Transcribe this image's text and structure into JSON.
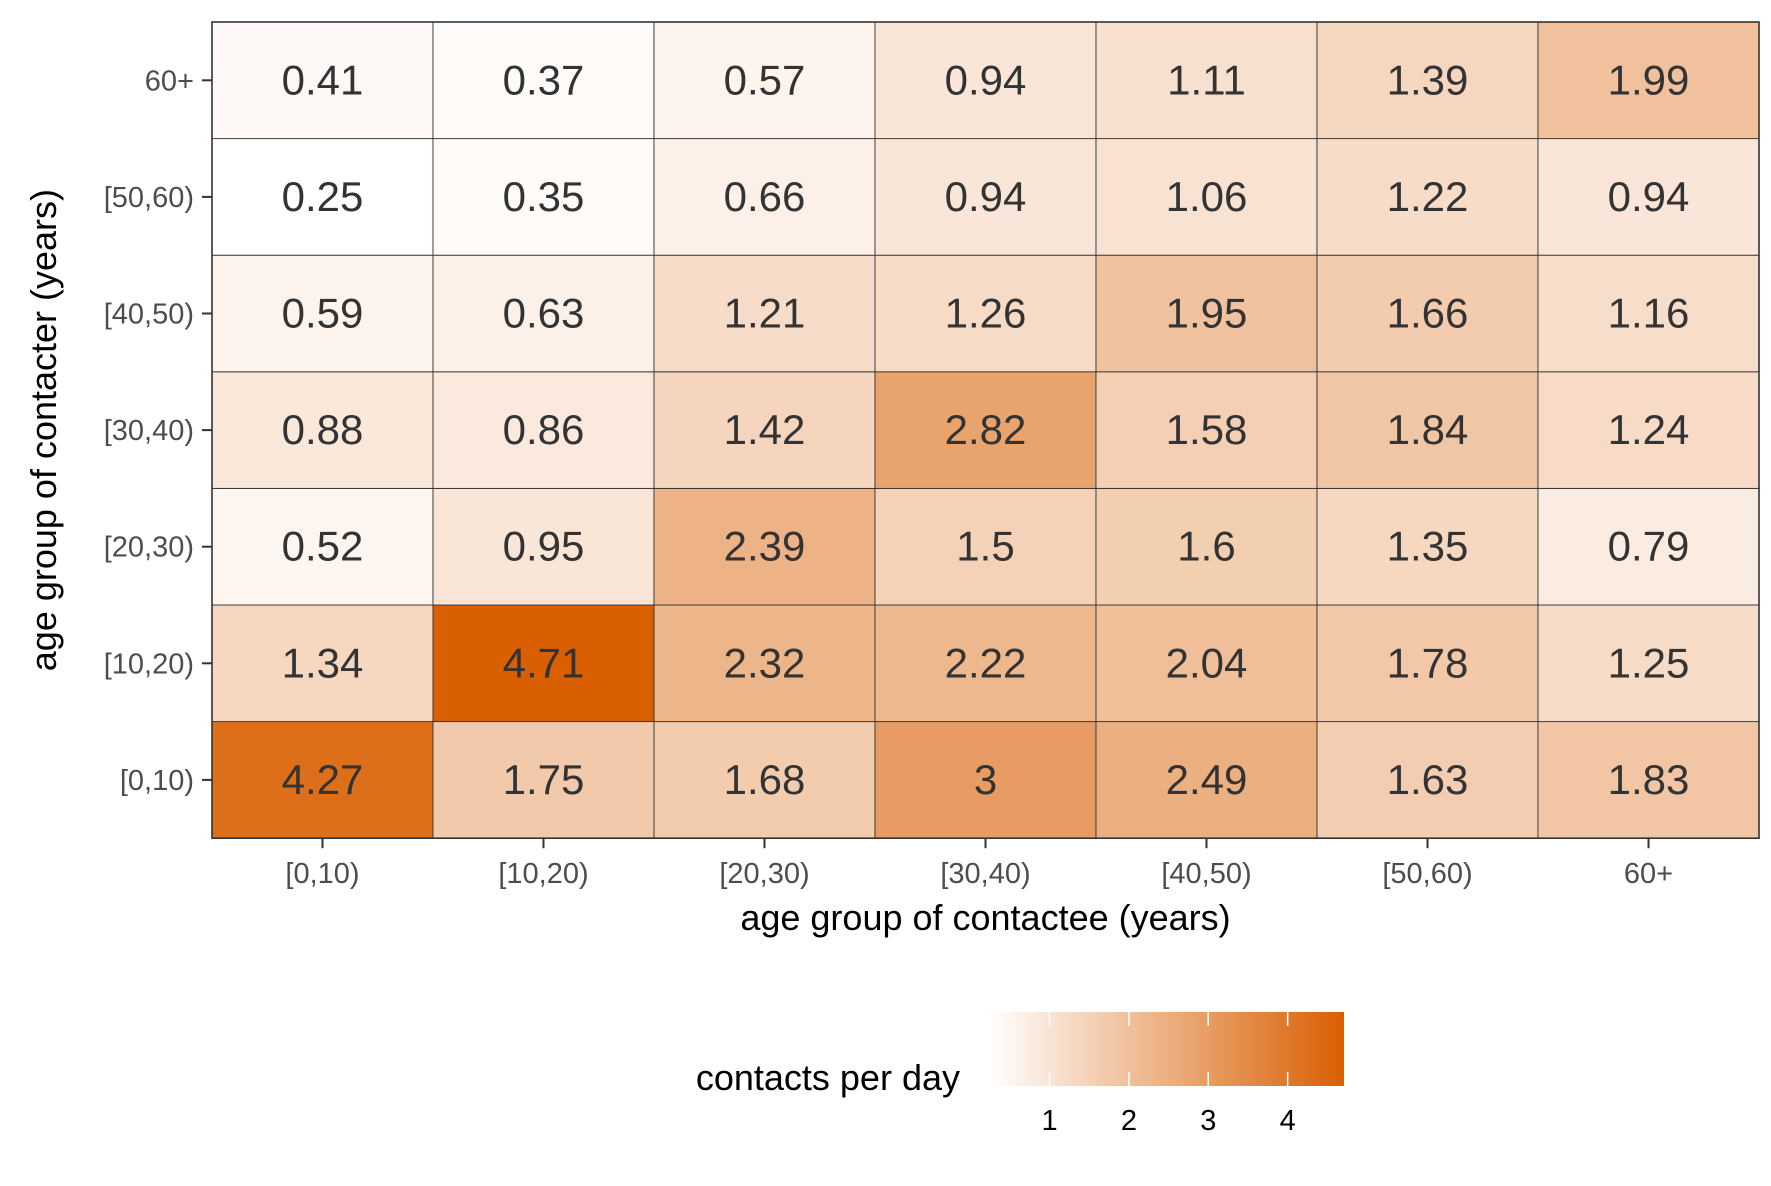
{
  "chart_data": {
    "type": "heatmap",
    "title": "",
    "xlabel": "age group of contactee (years)",
    "ylabel": "age group of contacter (years)",
    "x_categories": [
      "[0,10)",
      "[10,20)",
      "[20,30)",
      "[30,40)",
      "[40,50)",
      "[50,60)",
      "60+"
    ],
    "y_categories": [
      "[0,10)",
      "[10,20)",
      "[20,30)",
      "[30,40)",
      "[40,50)",
      "[50,60)",
      "60+"
    ],
    "values": [
      [
        4.27,
        1.75,
        1.68,
        3,
        2.49,
        1.63,
        1.83
      ],
      [
        1.34,
        4.71,
        2.32,
        2.22,
        2.04,
        1.78,
        1.25
      ],
      [
        0.52,
        0.95,
        2.39,
        1.5,
        1.6,
        1.35,
        0.79
      ],
      [
        0.88,
        0.86,
        1.42,
        2.82,
        1.58,
        1.84,
        1.24
      ],
      [
        0.59,
        0.63,
        1.21,
        1.26,
        1.95,
        1.66,
        1.16
      ],
      [
        0.25,
        0.35,
        0.66,
        0.94,
        1.06,
        1.22,
        0.94
      ],
      [
        0.41,
        0.37,
        0.57,
        0.94,
        1.11,
        1.39,
        1.99
      ]
    ],
    "value_labels": [
      [
        "4.27",
        "1.75",
        "1.68",
        "3",
        "2.49",
        "1.63",
        "1.83"
      ],
      [
        "1.34",
        "4.71",
        "2.32",
        "2.22",
        "2.04",
        "1.78",
        "1.25"
      ],
      [
        "0.52",
        "0.95",
        "2.39",
        "1.5",
        "1.6",
        "1.35",
        "0.79"
      ],
      [
        "0.88",
        "0.86",
        "1.42",
        "2.82",
        "1.58",
        "1.84",
        "1.24"
      ],
      [
        "0.59",
        "0.63",
        "1.21",
        "1.26",
        "1.95",
        "1.66",
        "1.16"
      ],
      [
        "0.25",
        "0.35",
        "0.66",
        "0.94",
        "1.06",
        "1.22",
        "0.94"
      ],
      [
        "0.41",
        "0.37",
        "0.57",
        "0.94",
        "1.11",
        "1.39",
        "1.99"
      ]
    ],
    "color_scale": {
      "low": "#ffffff",
      "high": "#d95f02",
      "min": 0.25,
      "max": 4.71
    },
    "legend": {
      "title": "contacts per day",
      "ticks": [
        1,
        2,
        3,
        4
      ],
      "tick_labels": [
        "1",
        "2",
        "3",
        "4"
      ],
      "placement": "bottom"
    },
    "grid": false
  }
}
